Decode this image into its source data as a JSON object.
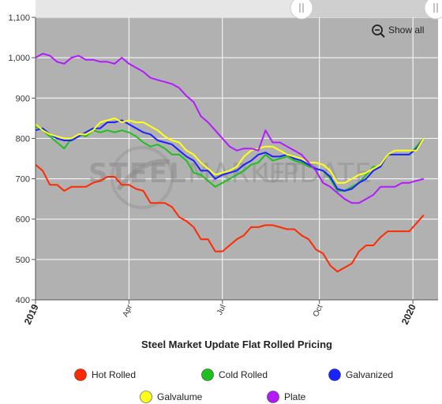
{
  "chart_data": {
    "type": "line",
    "title": "Steel Market Update Flat Rolled Pricing",
    "watermark": [
      "STEEL",
      "MARKET",
      "UPDATE"
    ],
    "navigator_button": "Show all",
    "xlabel": "",
    "ylabel": "",
    "ylim": [
      400,
      1100
    ],
    "yticks": [
      400,
      500,
      600,
      700,
      800,
      900,
      1000,
      1100
    ],
    "yticklabels": [
      "400",
      "500",
      "600",
      "700",
      "800",
      "900",
      "1,000",
      "1,100"
    ],
    "xlim": [
      0,
      56
    ],
    "xticks": [
      {
        "x": 0,
        "label": "2019",
        "bold": true
      },
      {
        "x": 13,
        "label": "Apr",
        "bold": false
      },
      {
        "x": 26,
        "label": "Jul",
        "bold": false
      },
      {
        "x": 39.5,
        "label": "Oct",
        "bold": false
      },
      {
        "x": 52.5,
        "label": "2020",
        "bold": true
      }
    ],
    "legend_position": "bottom",
    "grid": true,
    "series": [
      {
        "name": "Hot Rolled",
        "color": "#ff2a00",
        "values": [
          735,
          720,
          685,
          685,
          670,
          680,
          680,
          680,
          690,
          695,
          705,
          705,
          685,
          685,
          675,
          670,
          640,
          640,
          640,
          630,
          605,
          595,
          580,
          550,
          550,
          520,
          520,
          535,
          550,
          560,
          580,
          580,
          585,
          585,
          580,
          575,
          575,
          560,
          550,
          525,
          515,
          485,
          470,
          480,
          490,
          520,
          535,
          535,
          555,
          570,
          570,
          570,
          570,
          590,
          610
        ]
      },
      {
        "name": "Cold Rolled",
        "color": "#1fbf1f",
        "values": [
          830,
          820,
          805,
          790,
          775,
          800,
          810,
          805,
          820,
          815,
          820,
          815,
          820,
          815,
          805,
          790,
          780,
          785,
          775,
          760,
          760,
          745,
          715,
          710,
          695,
          680,
          690,
          700,
          710,
          720,
          735,
          740,
          760,
          745,
          750,
          755,
          745,
          740,
          730,
          725,
          720,
          700,
          670,
          670,
          680,
          690,
          710,
          730,
          730,
          760,
          760,
          760,
          760,
          780,
          800
        ]
      },
      {
        "name": "Galvanized",
        "color": "#1a22ff",
        "values": [
          820,
          825,
          810,
          800,
          795,
          795,
          805,
          815,
          825,
          825,
          840,
          840,
          845,
          835,
          825,
          815,
          810,
          795,
          790,
          785,
          770,
          755,
          745,
          720,
          720,
          700,
          710,
          715,
          720,
          735,
          745,
          760,
          765,
          755,
          755,
          760,
          750,
          745,
          735,
          725,
          720,
          705,
          675,
          670,
          675,
          690,
          700,
          720,
          730,
          760,
          760,
          760,
          760,
          775,
          800
        ]
      },
      {
        "name": "Galvalume",
        "color": "#ffff1a",
        "values": [
          835,
          820,
          810,
          805,
          800,
          800,
          810,
          810,
          820,
          840,
          845,
          850,
          840,
          845,
          840,
          840,
          830,
          820,
          805,
          795,
          790,
          770,
          760,
          740,
          725,
          710,
          715,
          720,
          730,
          755,
          770,
          775,
          780,
          780,
          770,
          760,
          755,
          750,
          740,
          740,
          735,
          720,
          690,
          690,
          700,
          710,
          715,
          725,
          735,
          760,
          770,
          770,
          770,
          770,
          800
        ]
      },
      {
        "name": "Plate",
        "color": "#b31aff",
        "values": [
          1000,
          1010,
          1005,
          990,
          985,
          1000,
          1005,
          995,
          995,
          990,
          990,
          985,
          1000,
          985,
          975,
          965,
          950,
          945,
          940,
          935,
          925,
          905,
          890,
          855,
          840,
          820,
          800,
          780,
          770,
          775,
          775,
          770,
          820,
          790,
          790,
          780,
          770,
          760,
          740,
          720,
          690,
          680,
          665,
          650,
          640,
          640,
          650,
          660,
          680,
          680,
          680,
          690,
          690,
          695,
          700
        ]
      }
    ]
  }
}
